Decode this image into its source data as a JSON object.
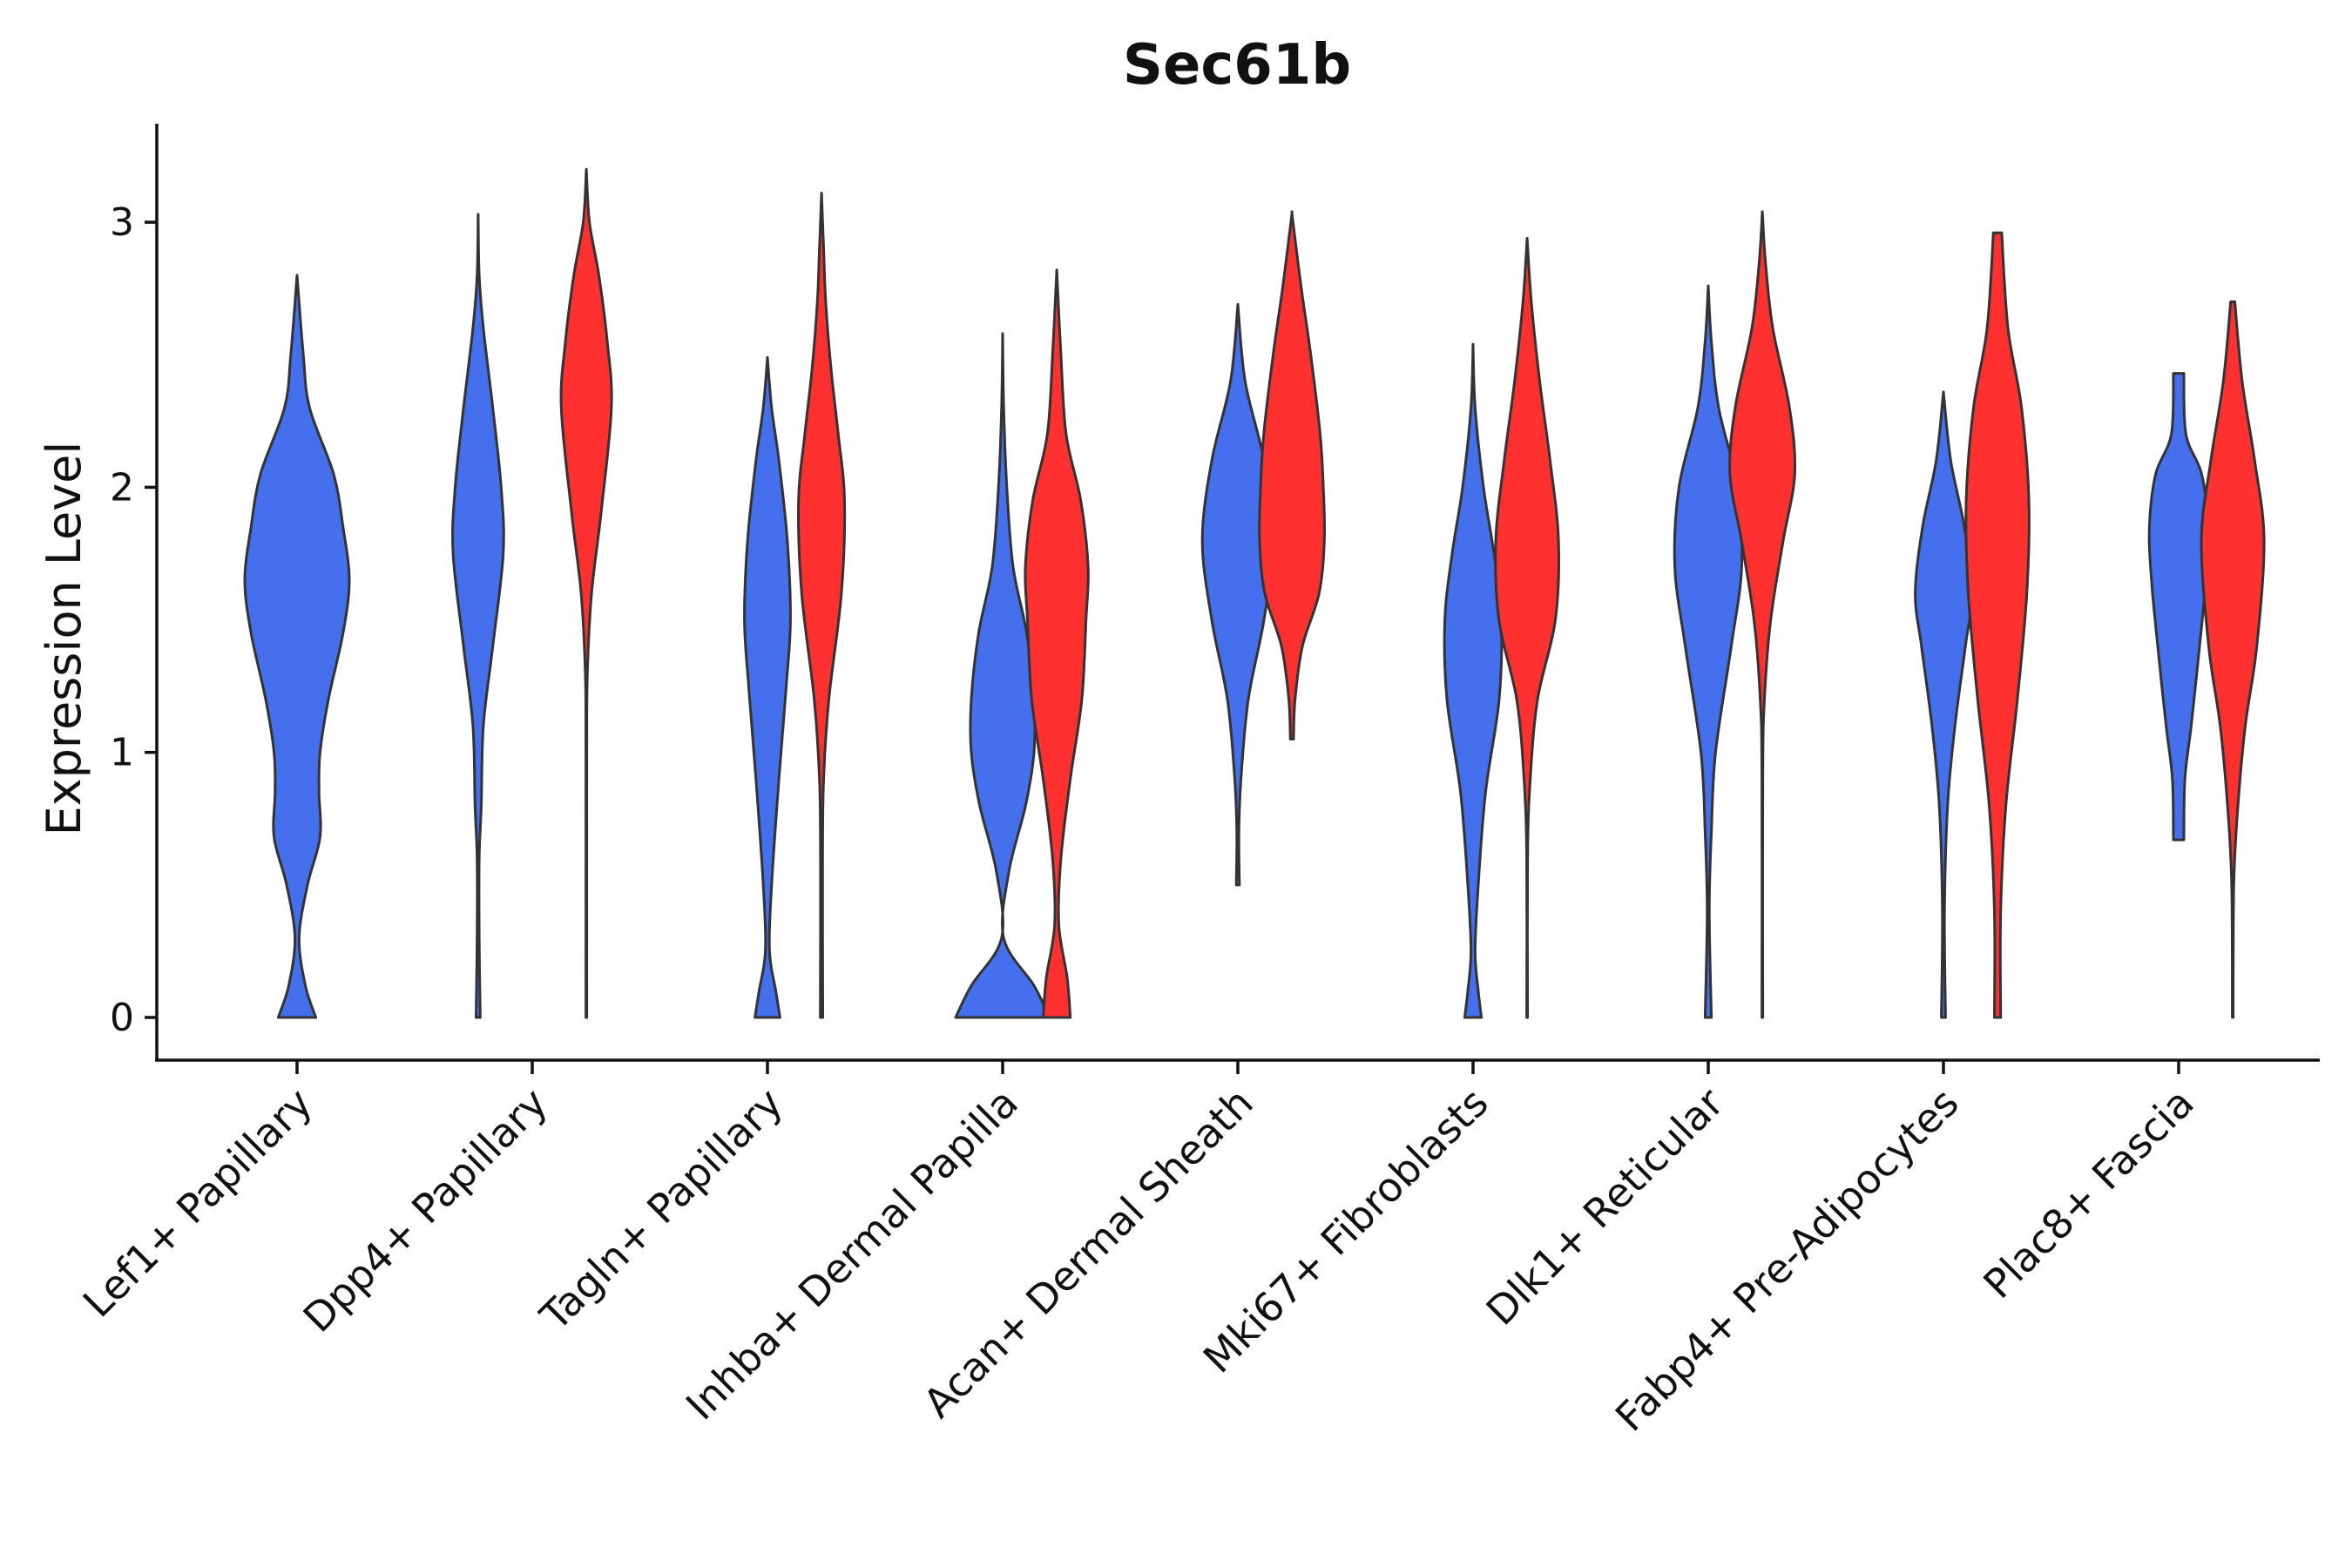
{
  "chart_data": {
    "type": "violin",
    "title": "Sec61b",
    "xlabel": "",
    "ylabel": "Expression Level",
    "ylim": [
      -0.16,
      3.37
    ],
    "yticks": [
      0,
      1,
      2,
      3
    ],
    "grid": false,
    "legend": "none",
    "group_colors": [
      "#4470ED",
      "#FF3030"
    ],
    "categories": [
      "Lef1+ Papillary",
      "Dpp4+ Papillary",
      "Tagln+ Papillary",
      "Inhba+ Dermal Papilla",
      "Acan+ Dermal Sheath",
      "Mki67+ Fibroblasts",
      "Dlk1+ Reticular",
      "Fabp4+ Pre-Adipocytes",
      "Plac8+ Fascia"
    ],
    "series": [
      {
        "category": "Lef1+ Papillary",
        "group": 0,
        "x": 0.0,
        "min": 0,
        "max": 2.8,
        "density": [
          [
            0,
            0.18
          ],
          [
            0.12,
            0.08
          ],
          [
            0.3,
            0.02
          ],
          [
            0.5,
            0.1
          ],
          [
            0.68,
            0.22
          ],
          [
            0.85,
            0.21
          ],
          [
            1.0,
            0.22
          ],
          [
            1.2,
            0.3
          ],
          [
            1.45,
            0.44
          ],
          [
            1.65,
            0.5
          ],
          [
            1.85,
            0.44
          ],
          [
            2.05,
            0.35
          ],
          [
            2.3,
            0.12
          ],
          [
            2.5,
            0.06
          ],
          [
            2.8,
            0.0
          ]
        ]
      },
      {
        "category": "Dpp4+ Papillary",
        "group": 0,
        "x": 0.77,
        "min": 0,
        "max": 3.03,
        "density": [
          [
            0,
            0.02
          ],
          [
            0.3,
            0.01
          ],
          [
            0.6,
            0.01
          ],
          [
            0.8,
            0.03
          ],
          [
            1.1,
            0.05
          ],
          [
            1.4,
            0.14
          ],
          [
            1.75,
            0.24
          ],
          [
            2.0,
            0.22
          ],
          [
            2.3,
            0.14
          ],
          [
            2.6,
            0.05
          ],
          [
            2.8,
            0.01
          ],
          [
            3.03,
            0.0
          ]
        ]
      },
      {
        "category": "Dpp4+ Papillary",
        "group": 1,
        "x": 1.23,
        "min": 0,
        "max": 3.2,
        "density": [
          [
            0,
            0.004
          ],
          [
            1.0,
            0.004
          ],
          [
            1.3,
            0.01
          ],
          [
            1.6,
            0.05
          ],
          [
            1.9,
            0.14
          ],
          [
            2.3,
            0.24
          ],
          [
            2.55,
            0.2
          ],
          [
            2.8,
            0.12
          ],
          [
            3.0,
            0.03
          ],
          [
            3.2,
            0.0
          ]
        ]
      },
      {
        "category": "Tagln+ Papillary",
        "group": 0,
        "x": 2.0,
        "min": 0,
        "max": 2.49,
        "density": [
          [
            0,
            0.12
          ],
          [
            0.1,
            0.08
          ],
          [
            0.25,
            0.02
          ],
          [
            0.5,
            0.04
          ],
          [
            0.9,
            0.11
          ],
          [
            1.25,
            0.18
          ],
          [
            1.5,
            0.22
          ],
          [
            1.8,
            0.19
          ],
          [
            2.1,
            0.11
          ],
          [
            2.3,
            0.04
          ],
          [
            2.49,
            0.0
          ]
        ]
      },
      {
        "category": "Tagln+ Papillary",
        "group": 1,
        "x": 2.23,
        "min": 0,
        "max": 3.11,
        "density": [
          [
            0,
            0.012
          ],
          [
            0.6,
            0.01
          ],
          [
            0.9,
            0.02
          ],
          [
            1.2,
            0.07
          ],
          [
            1.6,
            0.19
          ],
          [
            1.95,
            0.22
          ],
          [
            2.2,
            0.16
          ],
          [
            2.45,
            0.09
          ],
          [
            2.7,
            0.04
          ],
          [
            2.9,
            0.02
          ],
          [
            3.11,
            0.0
          ]
        ]
      },
      {
        "category": "Inhba+ Dermal Papilla",
        "group": 0,
        "x": 3.0,
        "min": 0,
        "max": 2.58,
        "density": [
          [
            0,
            0.45
          ],
          [
            0.12,
            0.3
          ],
          [
            0.3,
            0.01
          ],
          [
            0.55,
            0.06
          ],
          [
            0.8,
            0.22
          ],
          [
            1.0,
            0.3
          ],
          [
            1.2,
            0.3
          ],
          [
            1.45,
            0.23
          ],
          [
            1.7,
            0.1
          ],
          [
            2.0,
            0.04
          ],
          [
            2.3,
            0.01
          ],
          [
            2.58,
            0.0
          ]
        ]
      },
      {
        "category": "Inhba+ Dermal Papilla",
        "group": 1,
        "x": 3.23,
        "min": 0,
        "max": 2.82,
        "density": [
          [
            0,
            0.13
          ],
          [
            0.15,
            0.1
          ],
          [
            0.35,
            0.02
          ],
          [
            0.6,
            0.04
          ],
          [
            0.9,
            0.13
          ],
          [
            1.2,
            0.24
          ],
          [
            1.5,
            0.28
          ],
          [
            1.7,
            0.3
          ],
          [
            1.95,
            0.23
          ],
          [
            2.2,
            0.09
          ],
          [
            2.5,
            0.04
          ],
          [
            2.82,
            0.0
          ]
        ]
      },
      {
        "category": "Acan+ Dermal Sheath",
        "group": 0,
        "x": 4.0,
        "min": 0.5,
        "max": 2.69,
        "density": [
          [
            0.5,
            0.015
          ],
          [
            0.7,
            0.01
          ],
          [
            0.9,
            0.03
          ],
          [
            1.2,
            0.1
          ],
          [
            1.5,
            0.25
          ],
          [
            1.8,
            0.34
          ],
          [
            2.1,
            0.25
          ],
          [
            2.4,
            0.07
          ],
          [
            2.69,
            0.0
          ]
        ]
      },
      {
        "category": "Acan+ Dermal Sheath",
        "group": 1,
        "x": 4.23,
        "min": 1.05,
        "max": 3.04,
        "density": [
          [
            1.05,
            0.015
          ],
          [
            1.2,
            0.03
          ],
          [
            1.4,
            0.1
          ],
          [
            1.6,
            0.26
          ],
          [
            1.8,
            0.31
          ],
          [
            2.0,
            0.3
          ],
          [
            2.2,
            0.27
          ],
          [
            2.5,
            0.18
          ],
          [
            2.75,
            0.09
          ],
          [
            3.0,
            0.01
          ],
          [
            3.04,
            0.0
          ]
        ]
      },
      {
        "category": "Mki67+ Fibroblasts",
        "group": 0,
        "x": 5.0,
        "min": 0,
        "max": 2.54,
        "density": [
          [
            0,
            0.08
          ],
          [
            0.1,
            0.05
          ],
          [
            0.25,
            0.02
          ],
          [
            0.5,
            0.05
          ],
          [
            0.85,
            0.12
          ],
          [
            1.2,
            0.25
          ],
          [
            1.5,
            0.27
          ],
          [
            1.75,
            0.2
          ],
          [
            2.0,
            0.1
          ],
          [
            2.3,
            0.02
          ],
          [
            2.54,
            0.0
          ]
        ]
      },
      {
        "category": "Mki67+ Fibroblasts",
        "group": 1,
        "x": 5.23,
        "min": 0,
        "max": 2.94,
        "density": [
          [
            0,
            0.004
          ],
          [
            0.6,
            0.004
          ],
          [
            0.9,
            0.03
          ],
          [
            1.2,
            0.1
          ],
          [
            1.5,
            0.27
          ],
          [
            1.8,
            0.3
          ],
          [
            2.1,
            0.22
          ],
          [
            2.4,
            0.12
          ],
          [
            2.7,
            0.04
          ],
          [
            2.94,
            0.0
          ]
        ]
      },
      {
        "category": "Dlk1+ Reticular",
        "group": 0,
        "x": 6.0,
        "min": 0,
        "max": 2.76,
        "density": [
          [
            0,
            0.03
          ],
          [
            0.4,
            0.01
          ],
          [
            0.7,
            0.03
          ],
          [
            1.0,
            0.07
          ],
          [
            1.4,
            0.22
          ],
          [
            1.7,
            0.32
          ],
          [
            2.0,
            0.28
          ],
          [
            2.3,
            0.1
          ],
          [
            2.55,
            0.03
          ],
          [
            2.76,
            0.0
          ]
        ]
      },
      {
        "category": "Dlk1+ Reticular",
        "group": 1,
        "x": 6.23,
        "min": 0,
        "max": 3.04,
        "density": [
          [
            0,
            0.004
          ],
          [
            0.9,
            0.004
          ],
          [
            1.2,
            0.02
          ],
          [
            1.5,
            0.08
          ],
          [
            1.8,
            0.2
          ],
          [
            2.05,
            0.31
          ],
          [
            2.3,
            0.26
          ],
          [
            2.6,
            0.1
          ],
          [
            2.85,
            0.03
          ],
          [
            3.04,
            0.0
          ]
        ]
      },
      {
        "category": "Fabp4+ Pre-Adipocytes",
        "group": 0,
        "x": 7.0,
        "min": 0,
        "max": 2.36,
        "density": [
          [
            0,
            0.02
          ],
          [
            0.4,
            0.01
          ],
          [
            0.8,
            0.04
          ],
          [
            1.1,
            0.11
          ],
          [
            1.4,
            0.21
          ],
          [
            1.6,
            0.27
          ],
          [
            1.85,
            0.2
          ],
          [
            2.1,
            0.07
          ],
          [
            2.36,
            0.0
          ]
        ]
      },
      {
        "category": "Fabp4+ Pre-Adipocytes",
        "group": 1,
        "x": 7.23,
        "min": 0,
        "max": 2.96,
        "density": [
          [
            0,
            0.03
          ],
          [
            0.4,
            0.03
          ],
          [
            0.8,
            0.08
          ],
          [
            1.2,
            0.19
          ],
          [
            1.6,
            0.28
          ],
          [
            1.95,
            0.3
          ],
          [
            2.3,
            0.23
          ],
          [
            2.6,
            0.1
          ],
          [
            2.96,
            0.04
          ]
        ]
      },
      {
        "category": "Plac8+ Fascia",
        "group": 0,
        "x": 8.0,
        "min": 0.67,
        "max": 2.43,
        "density": [
          [
            0.67,
            0.05
          ],
          [
            0.9,
            0.06
          ],
          [
            1.1,
            0.12
          ],
          [
            1.4,
            0.2
          ],
          [
            1.65,
            0.26
          ],
          [
            1.85,
            0.28
          ],
          [
            2.05,
            0.22
          ],
          [
            2.2,
            0.07
          ],
          [
            2.43,
            0.05
          ]
        ]
      },
      {
        "category": "Plac8+ Fascia",
        "group": 1,
        "x": 8.23,
        "min": 0,
        "max": 2.7,
        "density": [
          [
            0,
            0.004
          ],
          [
            0.5,
            0.01
          ],
          [
            0.8,
            0.05
          ],
          [
            1.1,
            0.12
          ],
          [
            1.4,
            0.23
          ],
          [
            1.8,
            0.3
          ],
          [
            2.1,
            0.21
          ],
          [
            2.4,
            0.09
          ],
          [
            2.7,
            0.02
          ]
        ]
      }
    ]
  }
}
